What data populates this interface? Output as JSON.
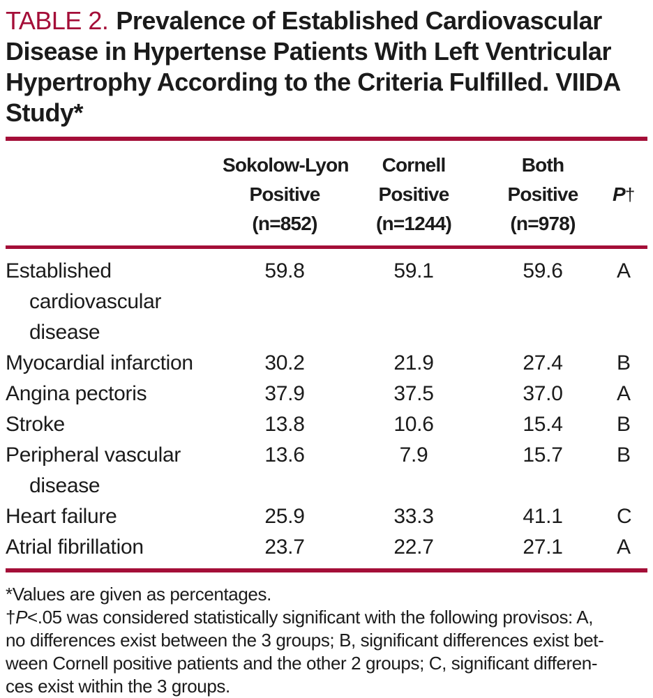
{
  "colors": {
    "accent": "#A40E38",
    "text": "#1B1B1B"
  },
  "title": {
    "label": "TABLE 2.",
    "line1_rest": "Prevalence of Established Cardiovascular",
    "line2": "Disease in Hypertense Patients With Left Ventricular",
    "line3": "Hypertrophy According to the Criteria Fulfilled. VIIDA",
    "line4": "Study*"
  },
  "table": {
    "header": {
      "col1": [
        "Sokolow-Lyon",
        "Positive",
        "(n=852)"
      ],
      "col2": [
        "Cornell",
        "Positive",
        "(n=1244)"
      ],
      "col3": [
        "Both",
        "Positive",
        "(n=978)"
      ],
      "p": {
        "symbol": "P",
        "dagger": "†"
      }
    },
    "rows": [
      {
        "label": "Established cardiovascular disease",
        "v1": "59.8",
        "v2": "59.1",
        "v3": "59.6",
        "p": "A"
      },
      {
        "label": "Myocardial infarction",
        "v1": "30.2",
        "v2": "21.9",
        "v3": "27.4",
        "p": "B"
      },
      {
        "label": "Angina pectoris",
        "v1": "37.9",
        "v2": "37.5",
        "v3": "37.0",
        "p": "A"
      },
      {
        "label": "Stroke",
        "v1": "13.8",
        "v2": "10.6",
        "v3": "15.4",
        "p": "B"
      },
      {
        "label": "Peripheral vascular disease",
        "v1": "13.6",
        "v2": "7.9",
        "v3": "15.7",
        "p": "B"
      },
      {
        "label": "Heart failure",
        "v1": "25.9",
        "v2": "33.3",
        "v3": "41.1",
        "p": "C"
      },
      {
        "label": "Atrial fibrillation",
        "v1": "23.7",
        "v2": "22.7",
        "v3": "27.1",
        "p": "A"
      }
    ]
  },
  "footnotes": {
    "note1": "*Values are given as percentages.",
    "note2": {
      "dagger": "†",
      "p_symbol": "P",
      "line1_rest": "<.05 was considered statistically significant with the following provisos: A,",
      "line2": "no differences exist between the 3 groups; B, significant differences exist bet-",
      "line3": "ween Cornell positive patients and the other 2 groups; C, significant differen-",
      "line4": "ces exist within the 3 groups."
    }
  }
}
